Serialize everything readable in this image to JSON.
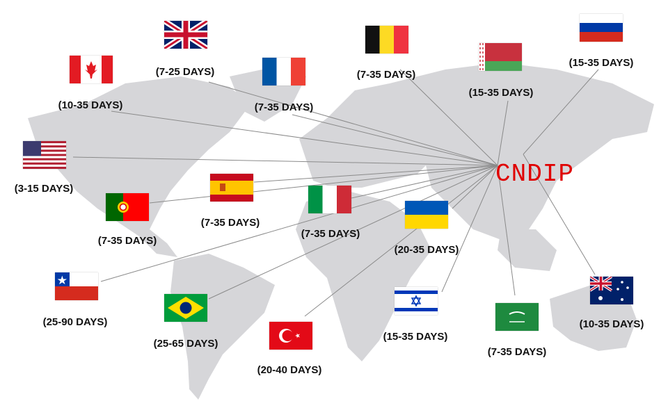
{
  "brand": {
    "text": "CNDIP",
    "color": "#e00000"
  },
  "map_color": "#d6d6d9",
  "line_color": "#8a8a8a",
  "destinations": [
    {
      "flag_icon": "uk-flag-icon",
      "days": "(7-25 DAYS)"
    },
    {
      "flag_icon": "canada-flag-icon",
      "days": "(10-35 DAYS)"
    },
    {
      "flag_icon": "france-flag-icon",
      "days": "(7-35 DAYS)"
    },
    {
      "flag_icon": "belgium-flag-icon",
      "days": "(7-35 DAYS)"
    },
    {
      "flag_icon": "belarus-flag-icon",
      "days": "(15-35 DAYS)"
    },
    {
      "flag_icon": "russia-flag-icon",
      "days": "(15-35 DAYS)"
    },
    {
      "flag_icon": "usa-flag-icon",
      "days": "(3-15 DAYS)"
    },
    {
      "flag_icon": "spain-flag-icon",
      "days": "(7-35 DAYS)"
    },
    {
      "flag_icon": "portugal-flag-icon",
      "days": "(7-35 DAYS)"
    },
    {
      "flag_icon": "italy-flag-icon",
      "days": "(7-35 DAYS)"
    },
    {
      "flag_icon": "ukraine-flag-icon",
      "days": "(20-35 DAYS)"
    },
    {
      "flag_icon": "chile-flag-icon",
      "days": "(25-90 DAYS)"
    },
    {
      "flag_icon": "brazil-flag-icon",
      "days": "(25-65 DAYS)"
    },
    {
      "flag_icon": "turkey-flag-icon",
      "days": "(20-40 DAYS)"
    },
    {
      "flag_icon": "israel-flag-icon",
      "days": "(15-35 DAYS)"
    },
    {
      "flag_icon": "saudi-arabia-flag-icon",
      "days": "(7-35 DAYS)"
    },
    {
      "flag_icon": "australia-flag-icon",
      "days": "(10-35 DAYS)"
    }
  ]
}
